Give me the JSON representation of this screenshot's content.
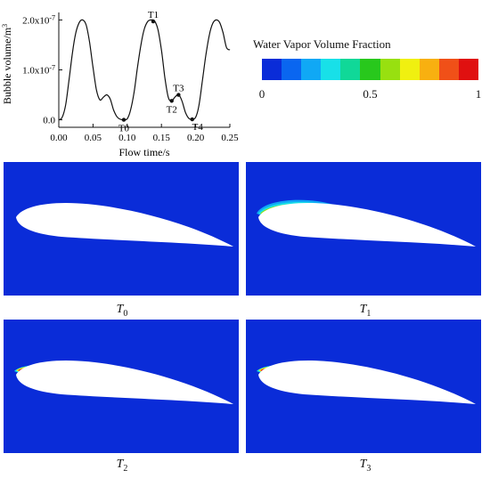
{
  "chart_data": {
    "type": "line",
    "xlabel": "Flow time/s",
    "ylabel": "Bubble volume/m",
    "ylabel_sup": "3",
    "x_ticks": [
      "0.00",
      "0.05",
      "0.10",
      "0.15",
      "0.20",
      "0.25"
    ],
    "y_ticks": [
      {
        "value": 0.0,
        "base": "0.0",
        "exp": ""
      },
      {
        "value": 1e-07,
        "base": "1.0x10",
        "exp": "-7"
      },
      {
        "value": 2e-07,
        "base": "2.0x10",
        "exp": "-7"
      }
    ],
    "xlim": [
      0.0,
      0.25
    ],
    "ylim": [
      -1.5e-08,
      2.15e-07
    ],
    "series": [
      {
        "x": [
          0.0,
          0.005,
          0.01,
          0.015,
          0.02,
          0.025,
          0.03,
          0.035,
          0.04,
          0.045,
          0.05,
          0.055,
          0.06,
          0.065,
          0.07,
          0.075,
          0.08,
          0.085,
          0.09,
          0.095,
          0.1,
          0.105,
          0.11,
          0.115,
          0.12,
          0.125,
          0.13,
          0.135,
          0.14,
          0.145,
          0.15,
          0.155,
          0.16,
          0.165,
          0.17,
          0.175,
          0.18,
          0.185,
          0.19,
          0.195,
          0.2,
          0.205,
          0.21,
          0.215,
          0.22,
          0.225,
          0.23,
          0.235,
          0.24,
          0.245,
          0.25
        ],
        "y": [
          0.0,
          5e-09,
          3e-08,
          8e-08,
          1.35e-07,
          1.75e-07,
          1.95e-07,
          2e-07,
          1.9e-07,
          1.55e-07,
          1.05e-07,
          6e-08,
          4e-08,
          4.5e-08,
          5e-08,
          4.2e-08,
          2e-08,
          6e-09,
          1e-09,
          0.0,
          2e-09,
          2e-08,
          5.5e-08,
          1.05e-07,
          1.5e-07,
          1.82e-07,
          1.97e-07,
          2e-07,
          1.98e-07,
          1.8e-07,
          1.4e-07,
          8.5e-08,
          4.5e-08,
          3.8e-08,
          4.6e-08,
          5e-08,
          3.8e-08,
          1.5e-08,
          3e-09,
          1e-09,
          5e-09,
          3e-08,
          8e-08,
          1.3e-07,
          1.7e-07,
          1.93e-07,
          2e-07,
          1.95e-07,
          1.75e-07,
          1.45e-07,
          1.4e-07
        ]
      }
    ],
    "annotations": [
      {
        "label": "T0",
        "x": 0.095,
        "y": 0.0,
        "pos": "below"
      },
      {
        "label": "T1",
        "x": 0.138,
        "y": 1.97e-07,
        "pos": "above"
      },
      {
        "label": "T2",
        "x": 0.165,
        "y": 3.8e-08,
        "pos": "below"
      },
      {
        "label": "T3",
        "x": 0.175,
        "y": 5e-08,
        "pos": "above"
      },
      {
        "label": "T4",
        "x": 0.195,
        "y": 1e-09,
        "pos": "below-right"
      }
    ],
    "grid": false
  },
  "legend": {
    "title": "Water Vapor Volume Fraction",
    "ticks": [
      {
        "label": "0",
        "frac": 0.0
      },
      {
        "label": "0.5",
        "frac": 0.5
      },
      {
        "label": "1",
        "frac": 1.0
      }
    ],
    "colors": [
      "#0a2cd8",
      "#0a66f0",
      "#10a8f5",
      "#18e0e8",
      "#10d898",
      "#28c81c",
      "#98e010",
      "#f0f010",
      "#f8b010",
      "#f05018",
      "#e01010"
    ]
  },
  "panels": [
    {
      "id": "t0",
      "label": "T",
      "sub": "0",
      "cavity": "none"
    },
    {
      "id": "t1",
      "label": "T",
      "sub": "1",
      "cavity": "large"
    },
    {
      "id": "t2",
      "label": "T",
      "sub": "2",
      "cavity": "small"
    },
    {
      "id": "t3",
      "label": "T",
      "sub": "3",
      "cavity": "small"
    }
  ],
  "colors": {
    "flow_background": "#0a2cd8",
    "foil": "#ffffff"
  }
}
